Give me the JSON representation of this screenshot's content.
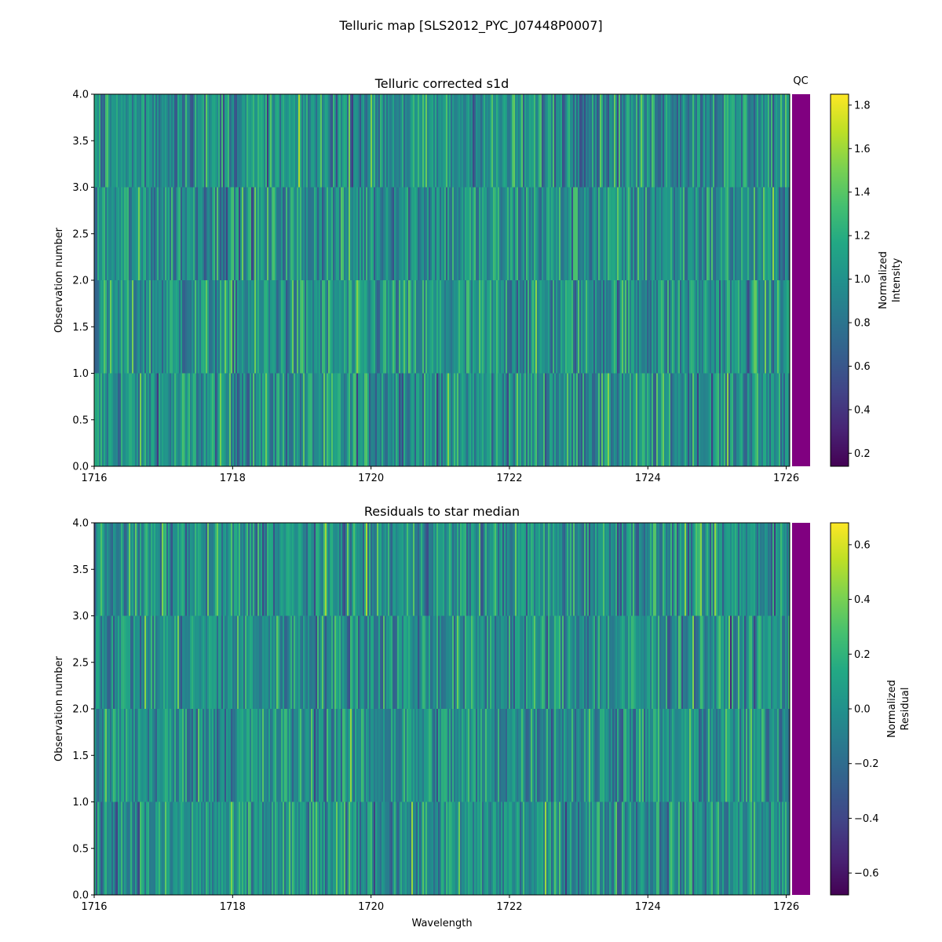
{
  "figure": {
    "title": "Telluric map [SLS2012_PYC_J07448P0007]",
    "qc_label": "QC",
    "qc_color": "#800080"
  },
  "chart_data": [
    {
      "type": "heatmap",
      "title": "Telluric corrected s1d",
      "xlabel": "",
      "ylabel": "Observation number",
      "xlim": [
        1716,
        1726.05
      ],
      "ylim": [
        0,
        4
      ],
      "xticks": [
        1716,
        1718,
        1720,
        1722,
        1724,
        1726
      ],
      "yticks": [
        0.0,
        0.5,
        1.0,
        1.5,
        2.0,
        2.5,
        3.0,
        3.5,
        4.0
      ],
      "rows": 4,
      "value_range": [
        0.14,
        1.85
      ],
      "colormap": "viridis",
      "colorbar": {
        "label_line1": "Normalized",
        "label_line2": "Intensity",
        "range": [
          0.14,
          1.85
        ],
        "ticks": [
          0.2,
          0.4,
          0.6,
          0.8,
          1.0,
          1.2,
          1.4,
          1.6,
          1.8
        ],
        "tick_labels": [
          "0.2",
          "0.4",
          "0.6",
          "0.8",
          "1.0",
          "1.2",
          "1.4",
          "1.6",
          "1.8"
        ]
      }
    },
    {
      "type": "heatmap",
      "title": "Residuals to star median",
      "xlabel": "Wavelength",
      "ylabel": "Observation number",
      "xlim": [
        1716,
        1726.05
      ],
      "ylim": [
        0,
        4
      ],
      "xticks": [
        1716,
        1718,
        1720,
        1722,
        1724,
        1726
      ],
      "yticks": [
        0.0,
        0.5,
        1.0,
        1.5,
        2.0,
        2.5,
        3.0,
        3.5,
        4.0
      ],
      "rows": 4,
      "value_range": [
        -0.68,
        0.68
      ],
      "colormap": "viridis",
      "colorbar": {
        "label_line1": "Normalized",
        "label_line2": "Residual",
        "range": [
          -0.68,
          0.68
        ],
        "ticks": [
          -0.6,
          -0.4,
          -0.2,
          0.0,
          0.2,
          0.4,
          0.6
        ],
        "tick_labels": [
          "−0.6",
          "−0.4",
          "−0.2",
          "0.0",
          "0.2",
          "0.4",
          "0.6"
        ]
      }
    }
  ]
}
